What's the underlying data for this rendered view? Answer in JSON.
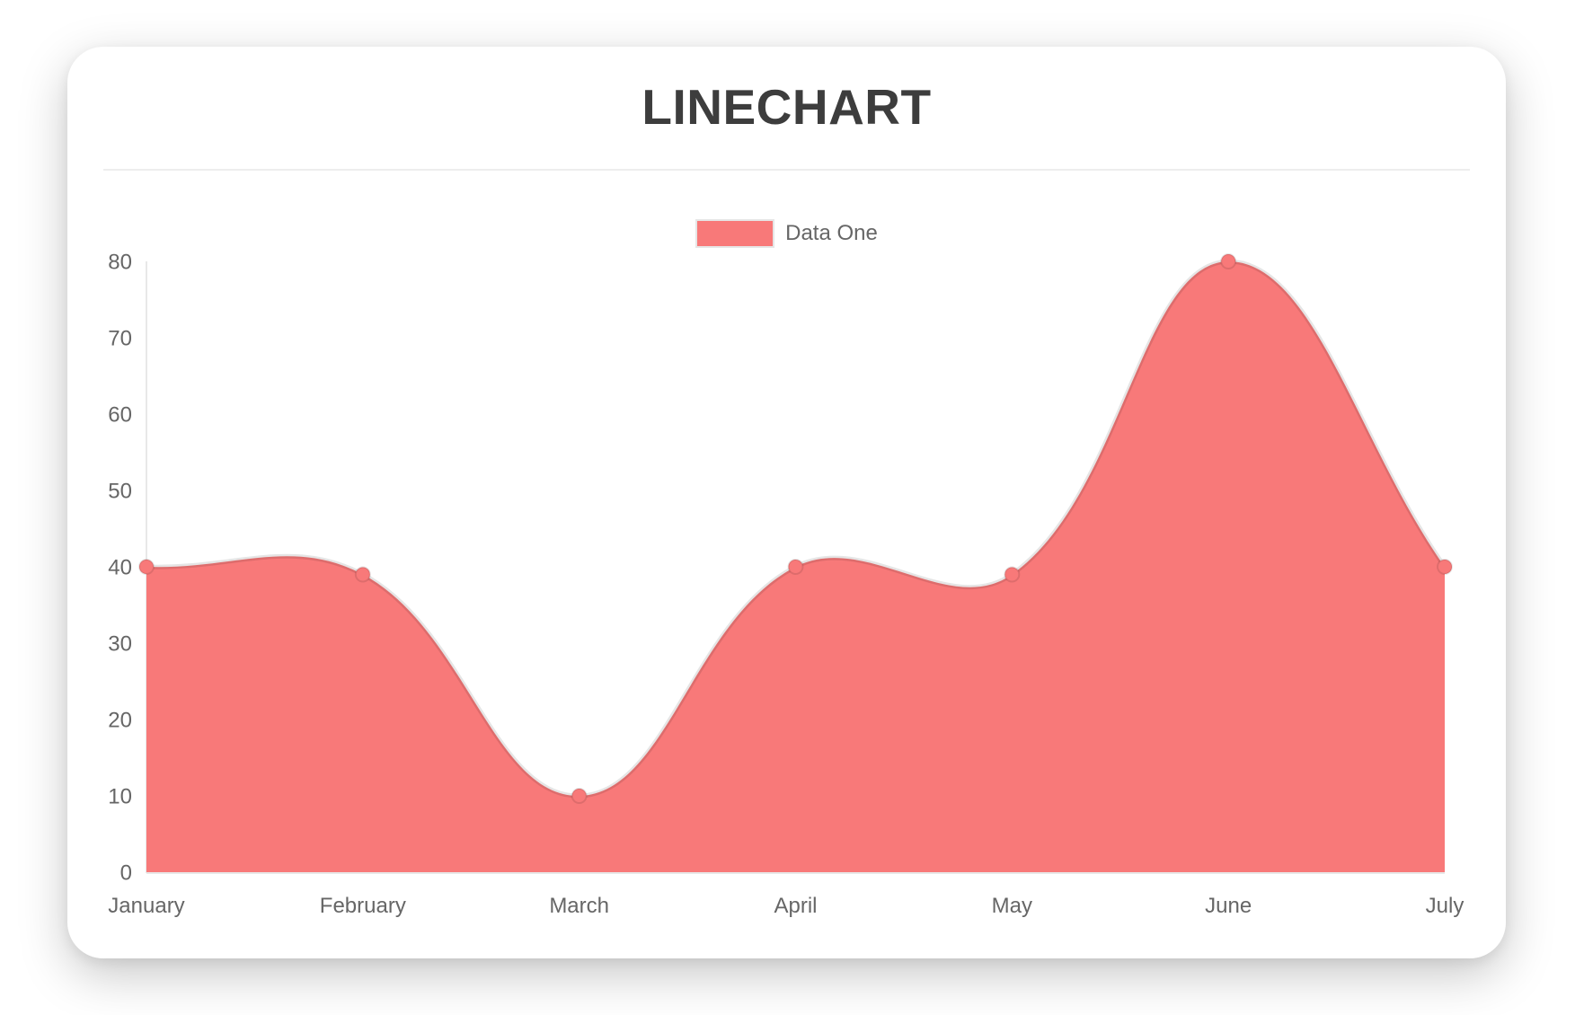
{
  "card": {
    "title": "LINECHART"
  },
  "legend": {
    "label": "Data One"
  },
  "colors": {
    "accent": "#f87979",
    "line_border": "rgba(0,0,0,0.10)",
    "point_border": "rgba(0,0,0,0.10)",
    "axis_line": "#e8e8e8",
    "tick_text": "#666666",
    "title_text": "#3d3d3d",
    "card_background": "#ffffff"
  },
  "chart_data": {
    "type": "area",
    "title": "LINECHART",
    "categories": [
      "January",
      "February",
      "March",
      "April",
      "May",
      "June",
      "July"
    ],
    "series": [
      {
        "name": "Data One",
        "values": [
          40,
          39,
          10,
          40,
          39,
          80,
          40
        ],
        "color": "#f87979"
      }
    ],
    "xlabel": "",
    "ylabel": "",
    "ylim": [
      0,
      80
    ],
    "yticks": [
      0,
      10,
      20,
      30,
      40,
      50,
      60,
      70,
      80
    ],
    "grid": false,
    "legend_position": "top",
    "line_tension": 0.4,
    "point_radius": 8
  }
}
